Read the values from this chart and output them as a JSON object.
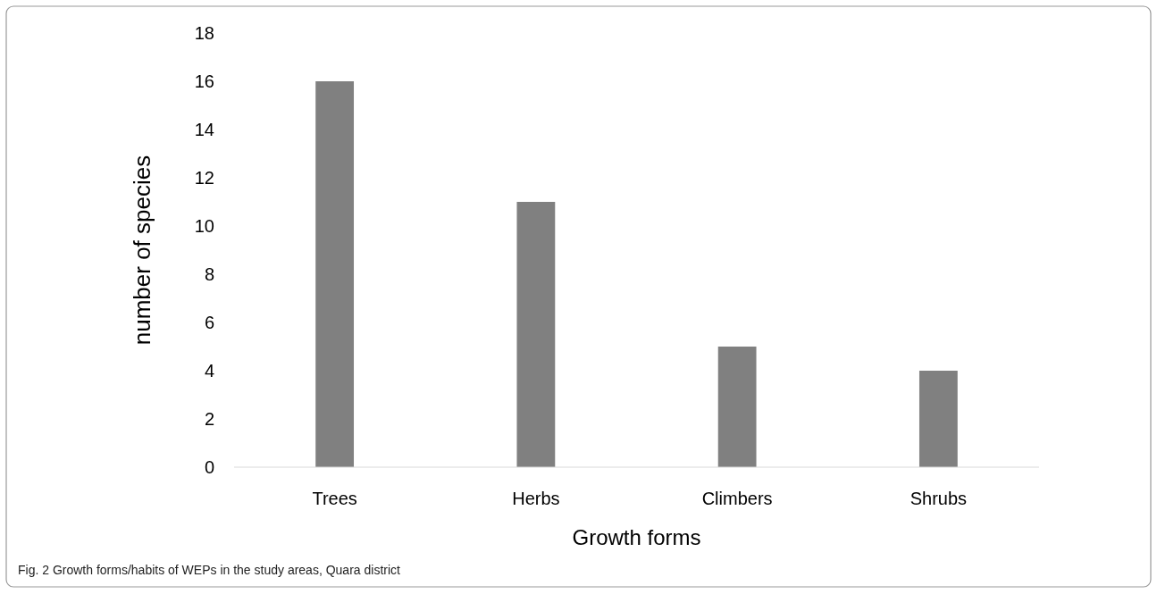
{
  "chart_data": {
    "type": "bar",
    "xlabel": "Growth forms",
    "ylabel": "number of species",
    "categories": [
      "Trees",
      "Herbs",
      "Climbers",
      "Shrubs"
    ],
    "values": [
      16,
      11,
      5,
      4
    ],
    "color": "#808080",
    "ylim": [
      0,
      18
    ],
    "yticks": [
      0,
      2,
      4,
      6,
      8,
      10,
      12,
      14,
      16,
      18
    ],
    "grid": false,
    "annotations": [
      "Fig. 2  Growth forms/habits of WEPs in the study areas, Quara district"
    ]
  }
}
